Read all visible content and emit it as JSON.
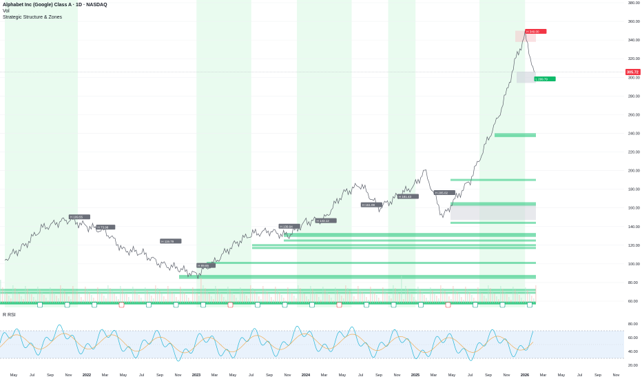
{
  "header": {
    "title": "Alphabet Inc (Google) Class A · 1D · NASDAQ",
    "volume_label": "Vol",
    "indicator_label": "Strategic Structure & Zones"
  },
  "rsi_panel": {
    "label": "R RSI",
    "y_ticks": [
      "80.00",
      "60.00",
      "40.00",
      "20.00"
    ]
  },
  "price_axis": {
    "ticks": [
      "380.00",
      "360.00",
      "340.00",
      "320.00",
      "300.00",
      "280.00",
      "260.00",
      "240.00",
      "220.00",
      "200.00",
      "180.00",
      "160.00",
      "140.00",
      "120.00",
      "100.00",
      "80.00",
      "60.00"
    ],
    "last_price": "305.72"
  },
  "time_axis": {
    "ticks": [
      "May",
      "Jul",
      "Sep",
      "Nov",
      "2022",
      "Mar",
      "May",
      "Jul",
      "Sep",
      "Nov",
      "2023",
      "Mar",
      "May",
      "Jul",
      "Sep",
      "Nov",
      "2024",
      "Mar",
      "May",
      "Jul",
      "Sep",
      "Nov",
      "2025",
      "Mar",
      "May",
      "Jul",
      "Sep",
      "Nov",
      "2026",
      "Mar",
      "May",
      "Jul",
      "Sep",
      "Nov"
    ]
  },
  "colors": {
    "zone_green": "#22c77a",
    "shade_green": "#e9fbef",
    "price_line": "#5b5f6a",
    "rsi_line": "#22b5d6",
    "rsi_ma": "#f2a23b",
    "last_price_badge": "#f23645",
    "label_gray": "#6b6f79",
    "label_green": "#0fba6a"
  },
  "chart_data": {
    "type": "line",
    "title": "Alphabet Inc (Google) Class A · 1D · NASDAQ",
    "y_range": [
      50,
      380
    ],
    "x_range": [
      "2021-04",
      "2026-12"
    ],
    "series": [
      {
        "values_x": [
          "2021-04",
          "2021-06",
          "2021-08",
          "2021-10",
          "2021-11",
          "2022-01",
          "2022-03",
          "2022-05",
          "2022-07",
          "2022-09",
          "2022-11",
          "2023-01",
          "2023-03",
          "2023-05",
          "2023-07",
          "2023-09",
          "2023-11",
          "2024-01",
          "2024-03",
          "2024-05",
          "2024-07",
          "2024-09",
          "2024-11",
          "2025-01",
          "2025-02",
          "2025-04",
          "2025-05",
          "2025-07",
          "2025-09",
          "2025-10",
          "2025-11",
          "2025-12",
          "2026-01",
          "2026-02"
        ],
        "values": [
          105,
          118,
          138,
          145,
          148,
          140,
          135,
          115,
          112,
          100,
          95,
          88,
          102,
          120,
          132,
          135,
          130,
          145,
          148,
          175,
          185,
          160,
          172,
          185,
          200,
          150,
          165,
          190,
          235,
          255,
          285,
          320,
          345,
          305.72
        ]
      }
    ],
    "annotations": [
      {
        "label": "H 109.55",
        "x": "2021-11",
        "y": 150
      },
      {
        "label": "H 73.98",
        "x": "2022-02",
        "y": 139
      },
      {
        "label": "H 119.79",
        "x": "2022-09",
        "y": 124
      },
      {
        "label": "H 89.65",
        "x": "2023-01",
        "y": 98
      },
      {
        "label": "H 139.94",
        "x": "2023-10",
        "y": 140
      },
      {
        "label": "H 143.12",
        "x": "2024-02",
        "y": 146
      },
      {
        "label": "H 151.08",
        "x": "2024-07",
        "y": 163
      },
      {
        "label": "H 181.43",
        "x": "2024-11",
        "y": 172
      },
      {
        "label": "H 205.02",
        "x": "2025-03",
        "y": 176
      },
      {
        "label": "H 349.00",
        "x": "2026-01",
        "y": 349
      },
      {
        "label": "L 299.79",
        "x": "2026-02",
        "y": 298
      }
    ],
    "rsi": {
      "range": [
        20,
        90
      ],
      "upper": 70,
      "lower": 30
    }
  }
}
